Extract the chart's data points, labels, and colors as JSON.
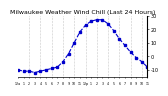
{
  "title": "Milwaukee Weather Wind Chill (Last 24 Hours)",
  "x_values": [
    0,
    1,
    2,
    3,
    4,
    5,
    6,
    7,
    8,
    9,
    10,
    11,
    12,
    13,
    14,
    15,
    16,
    17,
    18,
    19,
    20,
    21,
    22,
    23
  ],
  "y_values": [
    -10,
    -11,
    -11,
    -12,
    -11,
    -10,
    -9,
    -8,
    -4,
    2,
    10,
    18,
    23,
    26,
    27,
    27,
    24,
    19,
    13,
    8,
    3,
    -1,
    -4,
    -8
  ],
  "line_color": "#0000cc",
  "line_style": "--",
  "marker": "s",
  "marker_size": 1.5,
  "line_width": 0.8,
  "ylim": [
    -15,
    30
  ],
  "yticks": [
    -10,
    0,
    10,
    20,
    30
  ],
  "ytick_labels": [
    "-10",
    "0",
    "10",
    "20",
    "30"
  ],
  "background_color": "#ffffff",
  "grid_color": "#999999",
  "grid_style": ":",
  "title_fontsize": 4.5,
  "tick_fontsize": 3.5,
  "vgrid_positions": [
    2,
    4,
    6,
    8,
    10,
    12,
    14,
    16,
    18,
    20,
    22
  ],
  "xlim": [
    0,
    23
  ]
}
